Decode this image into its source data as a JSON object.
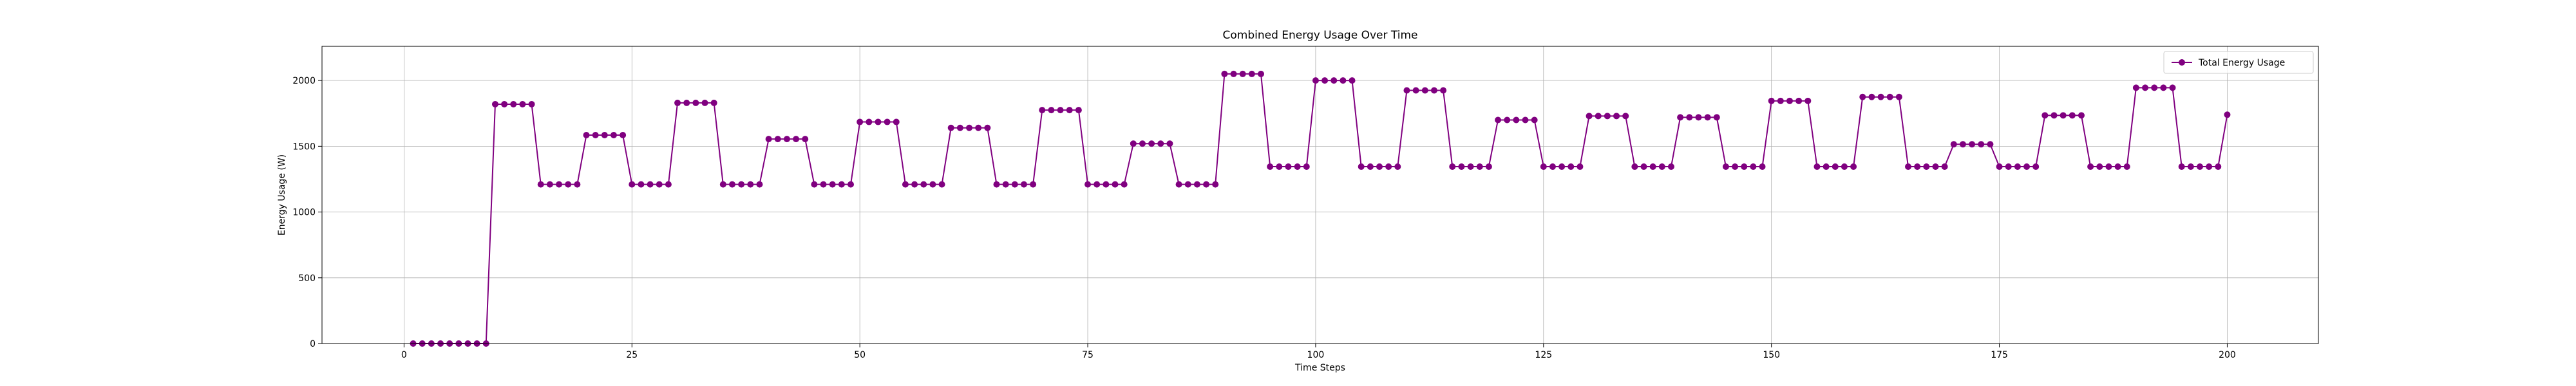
{
  "chart_data": {
    "type": "line",
    "title": "Combined Energy Usage Over Time",
    "xlabel": "Time Steps",
    "ylabel": "Energy Usage (W)",
    "xlim": [
      -9,
      210
    ],
    "ylim": [
      0,
      2260
    ],
    "xticks": [
      0,
      25,
      50,
      75,
      100,
      125,
      150,
      175,
      200
    ],
    "yticks": [
      0,
      500,
      1000,
      1500,
      2000
    ],
    "grid": true,
    "legend_position": "top-right",
    "colors": {
      "series": "#800080",
      "grid": "#b0b0b0",
      "axis": "#000000"
    },
    "series": [
      {
        "name": "Total Energy Usage",
        "marker": "circle",
        "points": [
          [
            1,
            0
          ],
          [
            2,
            0
          ],
          [
            3,
            0
          ],
          [
            4,
            0
          ],
          [
            5,
            0
          ],
          [
            6,
            0
          ],
          [
            7,
            0
          ],
          [
            8,
            0
          ],
          [
            9,
            0
          ],
          [
            10,
            1820
          ],
          [
            11,
            1820
          ],
          [
            12,
            1820
          ],
          [
            13,
            1820
          ],
          [
            14,
            1820
          ],
          [
            15,
            1210
          ],
          [
            16,
            1210
          ],
          [
            17,
            1210
          ],
          [
            18,
            1210
          ],
          [
            19,
            1210
          ],
          [
            20,
            1585
          ],
          [
            21,
            1585
          ],
          [
            22,
            1585
          ],
          [
            23,
            1585
          ],
          [
            24,
            1585
          ],
          [
            25,
            1210
          ],
          [
            26,
            1210
          ],
          [
            27,
            1210
          ],
          [
            28,
            1210
          ],
          [
            29,
            1210
          ],
          [
            30,
            1830
          ],
          [
            31,
            1830
          ],
          [
            32,
            1830
          ],
          [
            33,
            1830
          ],
          [
            34,
            1830
          ],
          [
            35,
            1210
          ],
          [
            36,
            1210
          ],
          [
            37,
            1210
          ],
          [
            38,
            1210
          ],
          [
            39,
            1210
          ],
          [
            40,
            1555
          ],
          [
            41,
            1555
          ],
          [
            42,
            1555
          ],
          [
            43,
            1555
          ],
          [
            44,
            1555
          ],
          [
            45,
            1210
          ],
          [
            46,
            1210
          ],
          [
            47,
            1210
          ],
          [
            48,
            1210
          ],
          [
            49,
            1210
          ],
          [
            50,
            1685
          ],
          [
            51,
            1685
          ],
          [
            52,
            1685
          ],
          [
            53,
            1685
          ],
          [
            54,
            1685
          ],
          [
            55,
            1210
          ],
          [
            56,
            1210
          ],
          [
            57,
            1210
          ],
          [
            58,
            1210
          ],
          [
            59,
            1210
          ],
          [
            60,
            1640
          ],
          [
            61,
            1640
          ],
          [
            62,
            1640
          ],
          [
            63,
            1640
          ],
          [
            64,
            1640
          ],
          [
            65,
            1210
          ],
          [
            66,
            1210
          ],
          [
            67,
            1210
          ],
          [
            68,
            1210
          ],
          [
            69,
            1210
          ],
          [
            70,
            1775
          ],
          [
            71,
            1775
          ],
          [
            72,
            1775
          ],
          [
            73,
            1775
          ],
          [
            74,
            1775
          ],
          [
            75,
            1210
          ],
          [
            76,
            1210
          ],
          [
            77,
            1210
          ],
          [
            78,
            1210
          ],
          [
            79,
            1210
          ],
          [
            80,
            1520
          ],
          [
            81,
            1520
          ],
          [
            82,
            1520
          ],
          [
            83,
            1520
          ],
          [
            84,
            1520
          ],
          [
            85,
            1210
          ],
          [
            86,
            1210
          ],
          [
            87,
            1210
          ],
          [
            88,
            1210
          ],
          [
            89,
            1210
          ],
          [
            90,
            2050
          ],
          [
            91,
            2050
          ],
          [
            92,
            2050
          ],
          [
            93,
            2050
          ],
          [
            94,
            2050
          ],
          [
            95,
            1345
          ],
          [
            96,
            1345
          ],
          [
            97,
            1345
          ],
          [
            98,
            1345
          ],
          [
            99,
            1345
          ],
          [
            100,
            2000
          ],
          [
            101,
            2000
          ],
          [
            102,
            2000
          ],
          [
            103,
            2000
          ],
          [
            104,
            2000
          ],
          [
            105,
            1345
          ],
          [
            106,
            1345
          ],
          [
            107,
            1345
          ],
          [
            108,
            1345
          ],
          [
            109,
            1345
          ],
          [
            110,
            1925
          ],
          [
            111,
            1925
          ],
          [
            112,
            1925
          ],
          [
            113,
            1925
          ],
          [
            114,
            1925
          ],
          [
            115,
            1345
          ],
          [
            116,
            1345
          ],
          [
            117,
            1345
          ],
          [
            118,
            1345
          ],
          [
            119,
            1345
          ],
          [
            120,
            1700
          ],
          [
            121,
            1700
          ],
          [
            122,
            1700
          ],
          [
            123,
            1700
          ],
          [
            124,
            1700
          ],
          [
            125,
            1345
          ],
          [
            126,
            1345
          ],
          [
            127,
            1345
          ],
          [
            128,
            1345
          ],
          [
            129,
            1345
          ],
          [
            130,
            1730
          ],
          [
            131,
            1730
          ],
          [
            132,
            1730
          ],
          [
            133,
            1730
          ],
          [
            134,
            1730
          ],
          [
            135,
            1345
          ],
          [
            136,
            1345
          ],
          [
            137,
            1345
          ],
          [
            138,
            1345
          ],
          [
            139,
            1345
          ],
          [
            140,
            1720
          ],
          [
            141,
            1720
          ],
          [
            142,
            1720
          ],
          [
            143,
            1720
          ],
          [
            144,
            1720
          ],
          [
            145,
            1345
          ],
          [
            146,
            1345
          ],
          [
            147,
            1345
          ],
          [
            148,
            1345
          ],
          [
            149,
            1345
          ],
          [
            150,
            1845
          ],
          [
            151,
            1845
          ],
          [
            152,
            1845
          ],
          [
            153,
            1845
          ],
          [
            154,
            1845
          ],
          [
            155,
            1345
          ],
          [
            156,
            1345
          ],
          [
            157,
            1345
          ],
          [
            158,
            1345
          ],
          [
            159,
            1345
          ],
          [
            160,
            1875
          ],
          [
            161,
            1875
          ],
          [
            162,
            1875
          ],
          [
            163,
            1875
          ],
          [
            164,
            1875
          ],
          [
            165,
            1345
          ],
          [
            166,
            1345
          ],
          [
            167,
            1345
          ],
          [
            168,
            1345
          ],
          [
            169,
            1345
          ],
          [
            170,
            1515
          ],
          [
            171,
            1515
          ],
          [
            172,
            1515
          ],
          [
            173,
            1515
          ],
          [
            174,
            1515
          ],
          [
            175,
            1345
          ],
          [
            176,
            1345
          ],
          [
            177,
            1345
          ],
          [
            178,
            1345
          ],
          [
            179,
            1345
          ],
          [
            180,
            1735
          ],
          [
            181,
            1735
          ],
          [
            182,
            1735
          ],
          [
            183,
            1735
          ],
          [
            184,
            1735
          ],
          [
            185,
            1345
          ],
          [
            186,
            1345
          ],
          [
            187,
            1345
          ],
          [
            188,
            1345
          ],
          [
            189,
            1345
          ],
          [
            190,
            1945
          ],
          [
            191,
            1945
          ],
          [
            192,
            1945
          ],
          [
            193,
            1945
          ],
          [
            194,
            1945
          ],
          [
            195,
            1345
          ],
          [
            196,
            1345
          ],
          [
            197,
            1345
          ],
          [
            198,
            1345
          ],
          [
            199,
            1345
          ],
          [
            200,
            1740
          ]
        ]
      }
    ]
  }
}
